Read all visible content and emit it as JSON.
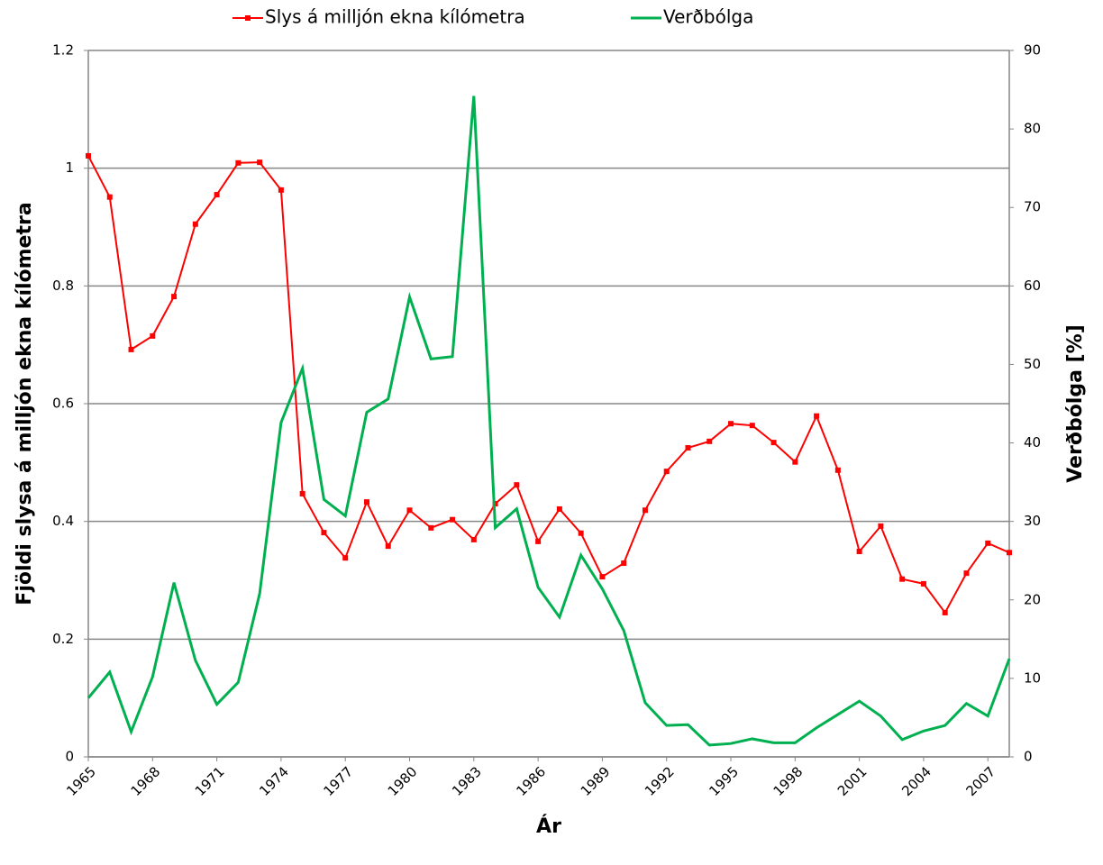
{
  "chart_data": {
    "type": "line",
    "x_label": "Ár",
    "y_label": "Fjöldi slysa á milljón ekna kílómetra",
    "y2_label": "Verðbólga [%]",
    "x": [
      1965,
      1966,
      1967,
      1968,
      1969,
      1970,
      1971,
      1972,
      1973,
      1974,
      1975,
      1976,
      1977,
      1978,
      1979,
      1980,
      1981,
      1982,
      1983,
      1984,
      1985,
      1986,
      1987,
      1988,
      1989,
      1990,
      1991,
      1992,
      1993,
      1994,
      1995,
      1996,
      1997,
      1998,
      1999,
      2000,
      2001,
      2002,
      2003,
      2004,
      2005,
      2006,
      2007,
      2008
    ],
    "xlim": [
      1965,
      2008
    ],
    "xticks": [
      1965,
      1968,
      1971,
      1974,
      1977,
      1980,
      1983,
      1986,
      1989,
      1992,
      1995,
      1998,
      2001,
      2004,
      2007
    ],
    "ylim": [
      0,
      1.2
    ],
    "yticks": [
      0,
      0.2,
      0.4,
      0.6,
      0.8,
      1,
      1.2
    ],
    "y2lim": [
      0,
      90
    ],
    "y2ticks": [
      0,
      10,
      20,
      30,
      40,
      50,
      60,
      70,
      80,
      90
    ],
    "grid": true,
    "legend": "top",
    "series": [
      {
        "name": "Slys á milljón ekna kílómetra",
        "color": "#ff0000",
        "marker": "square",
        "values": [
          1.021,
          0.951,
          0.692,
          0.715,
          0.782,
          0.905,
          0.955,
          1.009,
          1.01,
          0.963,
          0.447,
          0.381,
          0.338,
          0.433,
          0.358,
          0.419,
          0.389,
          0.403,
          0.369,
          0.43,
          0.462,
          0.366,
          0.421,
          0.38,
          0.306,
          0.329,
          0.419,
          0.485,
          0.525,
          0.536,
          0.566,
          0.563,
          0.534,
          0.501,
          0.579,
          0.487,
          0.349,
          0.392,
          0.302,
          0.294,
          0.245,
          0.312,
          0.363,
          0.347
        ]
      },
      {
        "name": "Verðbólga",
        "color": "#00b050",
        "axis": "y2",
        "values": [
          7.5,
          10.8,
          3.2,
          10.2,
          22.2,
          12.3,
          6.7,
          9.5,
          20.8,
          42.6,
          49.5,
          32.8,
          30.7,
          43.9,
          45.6,
          58.6,
          50.7,
          51.0,
          84.2,
          29.2,
          31.6,
          21.6,
          17.8,
          25.7,
          21.4,
          16.1,
          6.9,
          4.0,
          4.1,
          1.5,
          1.7,
          2.3,
          1.8,
          1.8,
          3.7,
          5.4,
          7.1,
          5.2,
          2.2,
          3.3,
          4.0,
          6.8,
          5.2,
          12.5
        ]
      }
    ]
  }
}
